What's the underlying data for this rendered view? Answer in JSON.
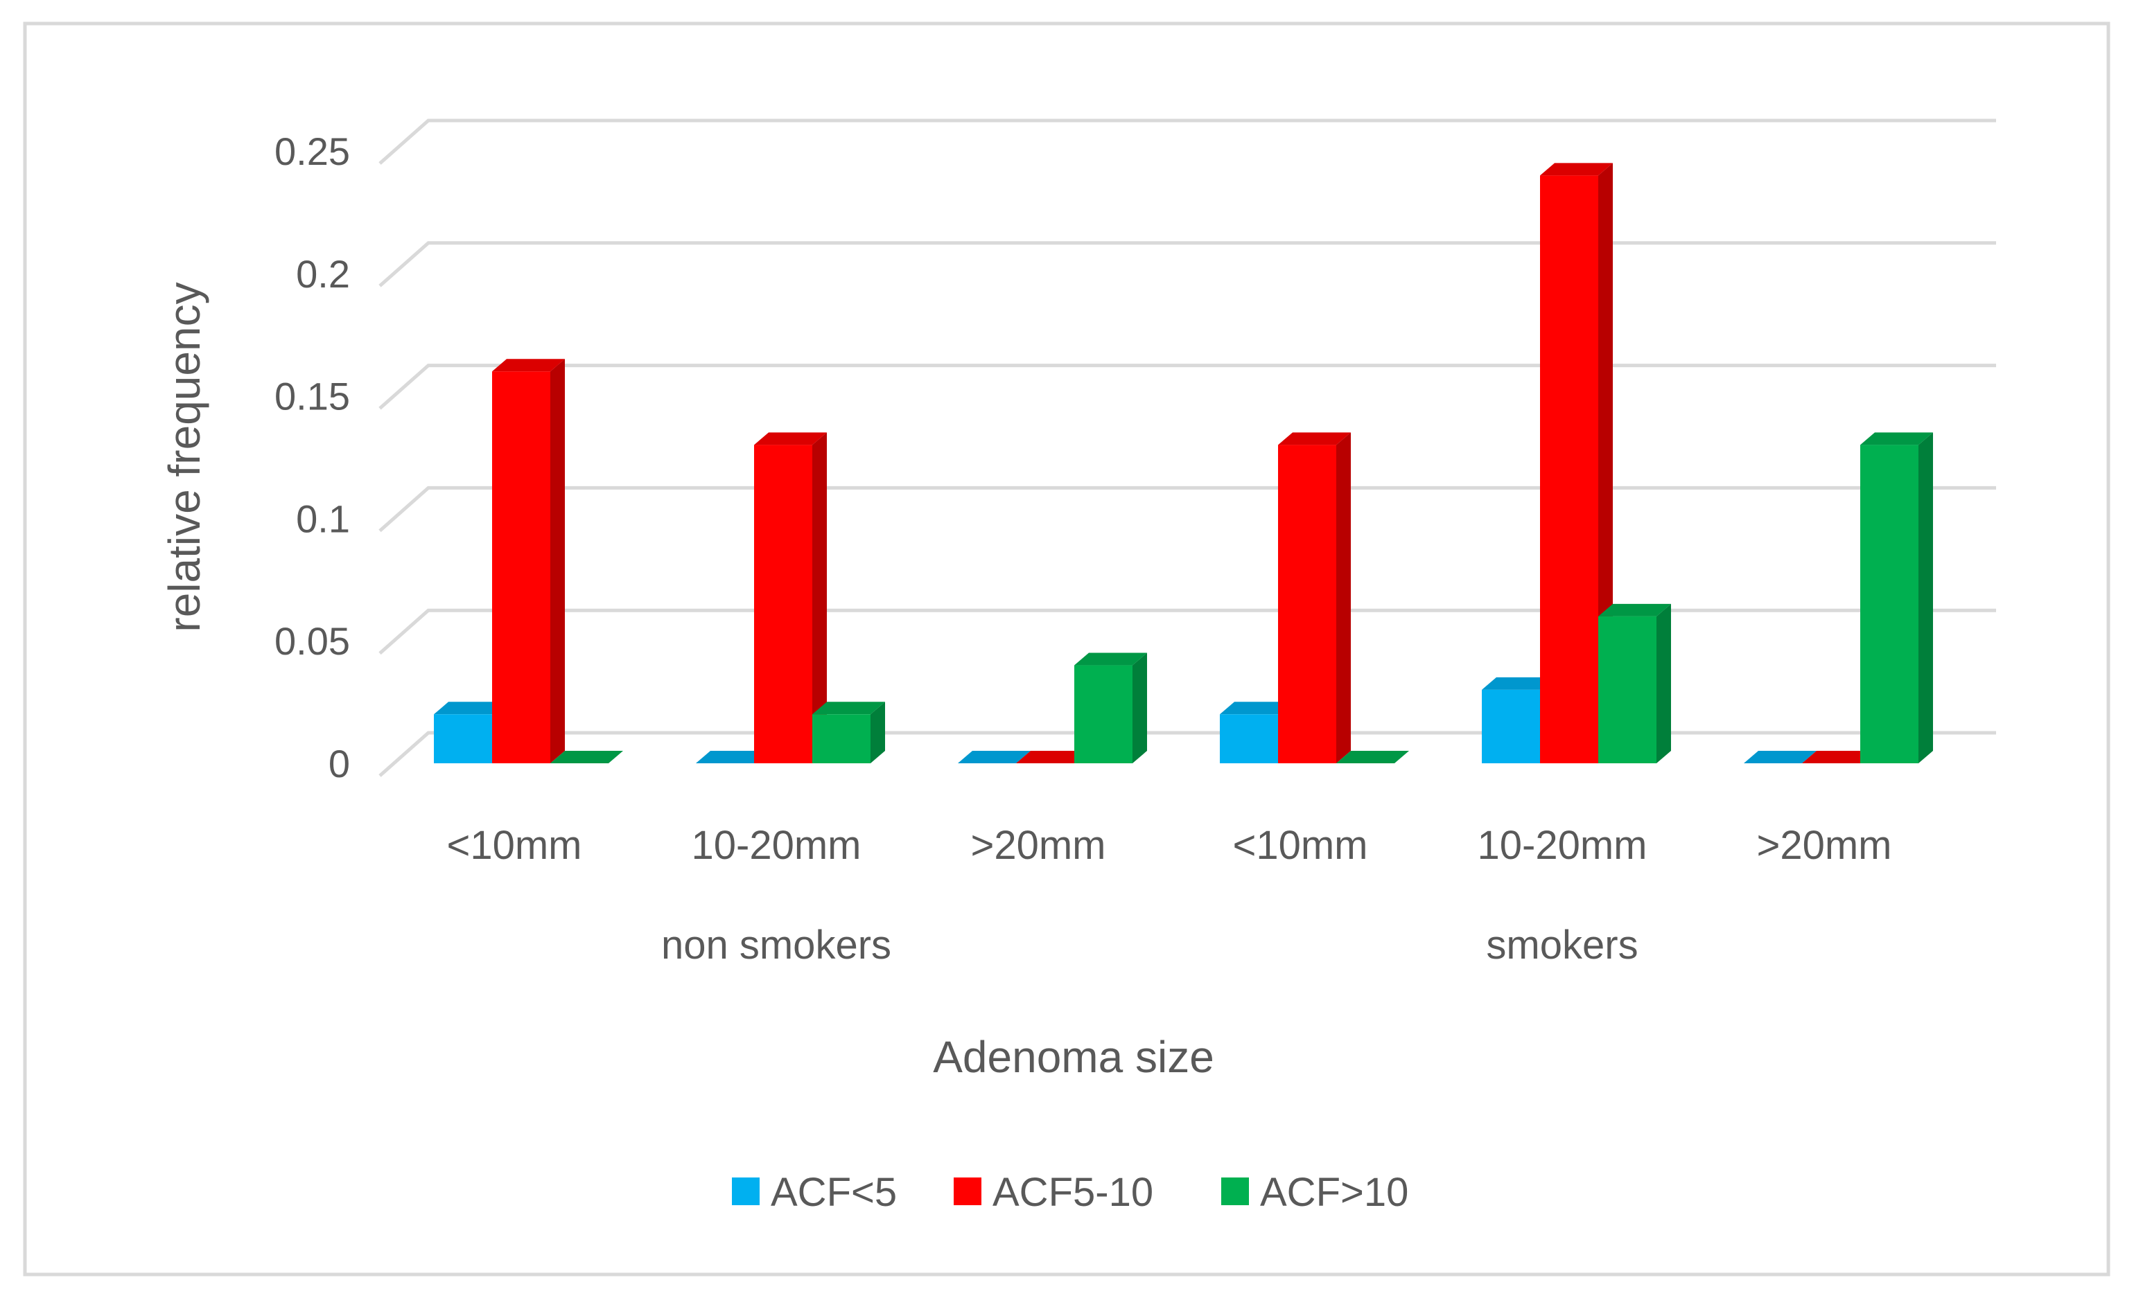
{
  "chart_data": {
    "type": "bar",
    "style": "3d-clustered-column",
    "title": "",
    "xlabel": "Adenoma size",
    "ylabel": "relative frequency",
    "ylim": [
      0,
      0.25
    ],
    "yticks": [
      "0",
      "0.05",
      "0.1",
      "0.15",
      "0.2",
      "0.25"
    ],
    "ytick_values": [
      0,
      0.05,
      0.1,
      0.15,
      0.2,
      0.25
    ],
    "grid": true,
    "legend_position": "bottom",
    "groups": [
      {
        "label": "non smokers",
        "categories": [
          "<10mm",
          "10-20mm",
          ">20mm"
        ]
      },
      {
        "label": "smokers",
        "categories": [
          "<10mm",
          "10-20mm",
          ">20mm"
        ]
      }
    ],
    "categories": [
      "<10mm",
      "10-20mm",
      ">20mm",
      "<10mm",
      "10-20mm",
      ">20mm"
    ],
    "series": [
      {
        "name": "ACF<5",
        "color": "#00B0F0",
        "values": [
          0.02,
          0,
          0,
          0.02,
          0.03,
          0
        ]
      },
      {
        "name": "ACF5-10",
        "color": "#FF0000",
        "values": [
          0.16,
          0.13,
          0,
          0.13,
          0.24,
          0
        ]
      },
      {
        "name": "ACF>10",
        "color": "#00B050",
        "values": [
          0,
          0.02,
          0.04,
          0,
          0.06,
          0.13
        ]
      }
    ]
  }
}
